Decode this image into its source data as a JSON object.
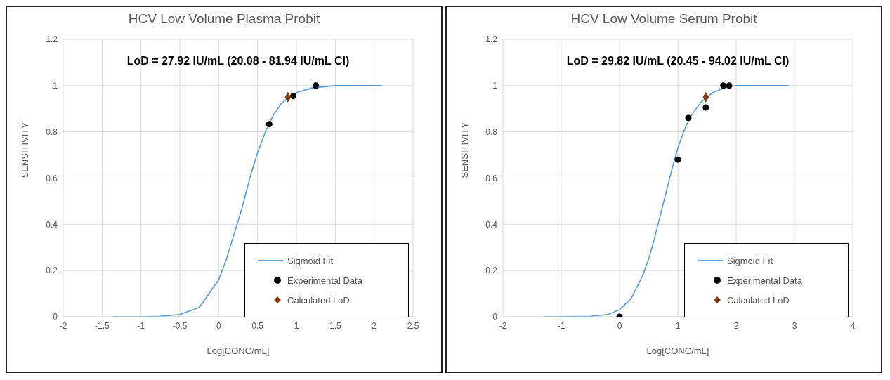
{
  "chart_data": [
    {
      "type": "scatter",
      "title": "HCV Low Volume Plasma Probit",
      "xlabel": "Log[CONC/mL]",
      "ylabel": "SENSITIVITY",
      "annotations": [
        "LoD = 27.92 IU/mL (20.08 - 81.94 IU/mL CI)"
      ],
      "xlim": [
        -2,
        2.5
      ],
      "xticks": [
        -2,
        -1.5,
        -1,
        -0.5,
        0,
        0.5,
        1,
        1.5,
        2,
        2.5
      ],
      "ylim": [
        0,
        1.2
      ],
      "yticks": [
        0,
        0.2,
        0.4,
        0.6,
        0.8,
        1,
        1.2
      ],
      "grid": true,
      "legend": "bottom right",
      "series": [
        {
          "name": "Sigmoid Fit",
          "type": "line",
          "marker": "none",
          "color": "#5b9bd5",
          "x": [
            -1.35,
            -1,
            -0.75,
            -0.5,
            -0.25,
            0,
            0.1,
            0.2,
            0.3,
            0.4,
            0.5,
            0.6,
            0.7,
            0.8,
            0.9,
            1,
            1.2,
            1.5,
            2.1
          ],
          "values": [
            0,
            0,
            0.002,
            0.01,
            0.04,
            0.16,
            0.25,
            0.36,
            0.47,
            0.6,
            0.71,
            0.8,
            0.87,
            0.92,
            0.95,
            0.97,
            0.99,
            1,
            1
          ]
        },
        {
          "name": "Experimental Data",
          "marker": "circle",
          "color": "#000000",
          "x": [
            0.65,
            0.96,
            1.25
          ],
          "values": [
            0.833,
            0.955,
            1
          ]
        },
        {
          "name": "Calculated LoD",
          "marker": "diamond",
          "color": "#843c0c",
          "x": [
            0.89
          ],
          "values": [
            0.95
          ]
        }
      ]
    },
    {
      "type": "scatter",
      "title": "HCV Low Volume Serum Probit",
      "xlabel": "Log[CONC/mL]",
      "ylabel": "SENSITIVITY",
      "annotations": [
        "LoD = 29.82 IU/mL (20.45 - 94.02 IU/mL CI)"
      ],
      "xlim": [
        -2,
        4
      ],
      "xticks": [
        -2,
        -1,
        0,
        1,
        2,
        3,
        4
      ],
      "ylim": [
        0,
        1.2
      ],
      "yticks": [
        0,
        0.2,
        0.4,
        0.6,
        0.8,
        1,
        1.2
      ],
      "grid": true,
      "legend": "bottom right",
      "series": [
        {
          "name": "Sigmoid Fit",
          "type": "line",
          "marker": "none",
          "color": "#5b9bd5",
          "x": [
            -1.3,
            -0.5,
            -0.2,
            0,
            0.2,
            0.4,
            0.5,
            0.6,
            0.7,
            0.8,
            0.9,
            1,
            1.1,
            1.2,
            1.4,
            1.6,
            1.8,
            2,
            2.9
          ],
          "values": [
            0,
            0.002,
            0.01,
            0.03,
            0.08,
            0.18,
            0.25,
            0.34,
            0.44,
            0.54,
            0.64,
            0.73,
            0.8,
            0.86,
            0.93,
            0.97,
            0.99,
            1,
            1
          ]
        },
        {
          "name": "Experimental Data",
          "marker": "circle",
          "color": "#000000",
          "x": [
            0,
            1,
            1.18,
            1.48,
            1.78,
            1.88
          ],
          "values": [
            0,
            0.68,
            0.86,
            0.905,
            1,
            1
          ]
        },
        {
          "name": "Calculated LoD",
          "marker": "diamond",
          "color": "#843c0c",
          "x": [
            1.48
          ],
          "values": [
            0.95
          ]
        }
      ]
    }
  ]
}
